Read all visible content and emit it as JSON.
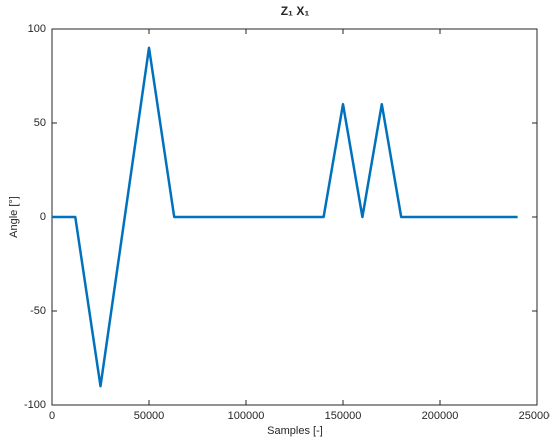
{
  "chart_data": {
    "type": "line",
    "title": "Z₁ X₁",
    "xlabel": "Samples [-]",
    "ylabel": "Angle [°]",
    "x": [
      0,
      12000,
      25000,
      50000,
      63000,
      140000,
      150000,
      160000,
      170000,
      180000,
      240000
    ],
    "series": [
      {
        "name": "Z1 X1",
        "color": "#0072bd",
        "values": [
          0,
          0,
          -90,
          90,
          0,
          0,
          60,
          0,
          60,
          0,
          0
        ]
      }
    ],
    "xlim": [
      0,
      250000
    ],
    "xticks": [
      0,
      50000,
      100000,
      150000,
      200000,
      250000
    ],
    "ylim": [
      -100,
      100
    ],
    "yticks": [
      -100,
      -50,
      0,
      50,
      100
    ]
  }
}
